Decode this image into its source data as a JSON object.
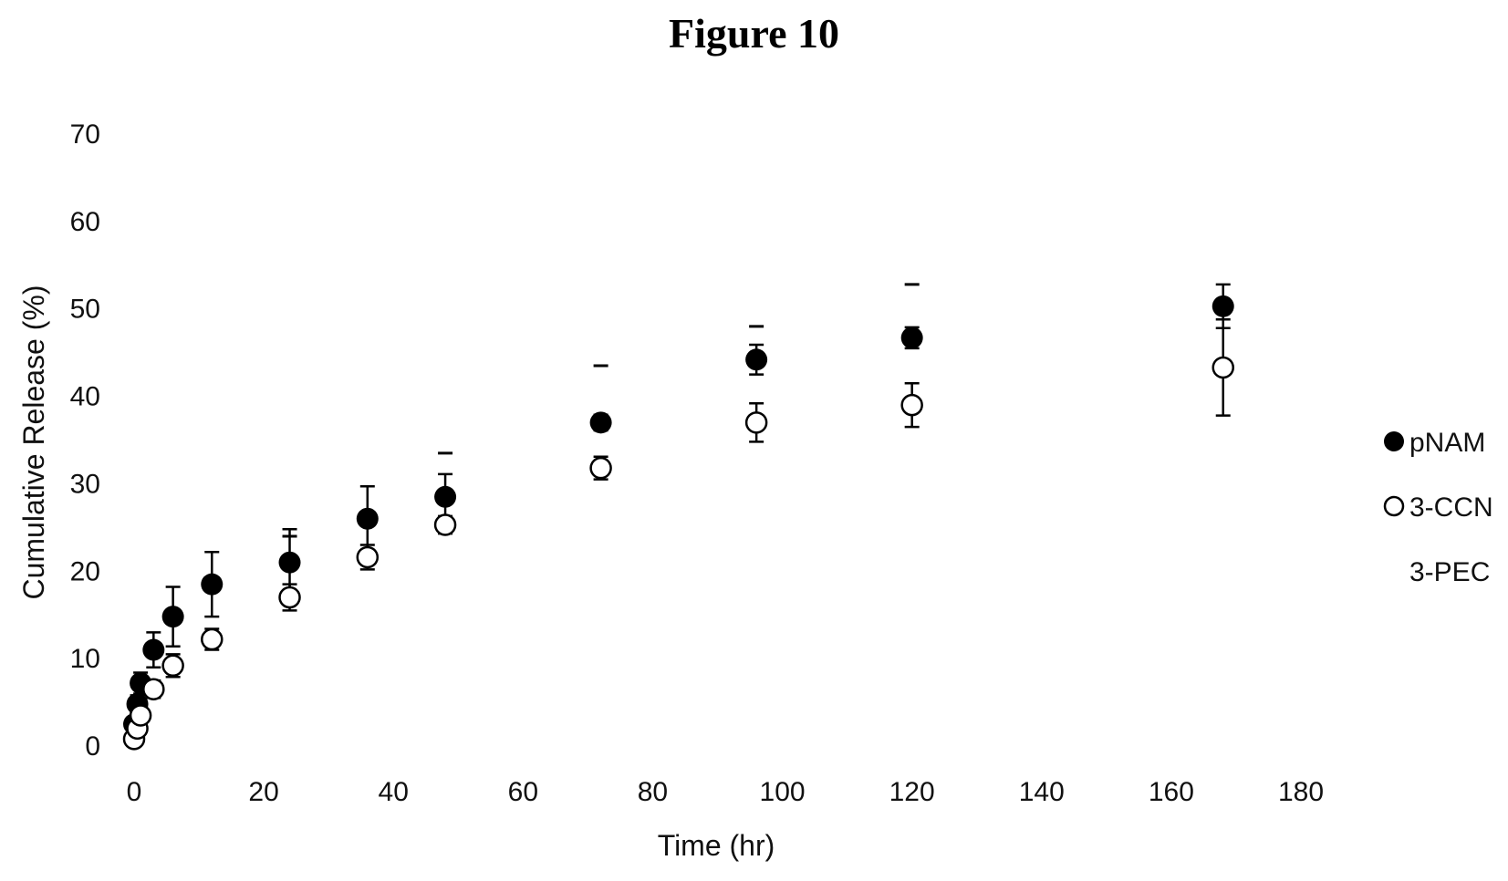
{
  "figure_title": "Figure 10",
  "chart_data": {
    "type": "scatter",
    "title": "",
    "xlabel": "Time (hr)",
    "ylabel": "Cumulative Release (%)",
    "xlim": [
      0,
      180
    ],
    "ylim": [
      0,
      70
    ],
    "xticks": [
      0,
      20,
      40,
      60,
      80,
      100,
      120,
      140,
      160,
      180
    ],
    "yticks": [
      0,
      10,
      20,
      30,
      40,
      50,
      60,
      70
    ],
    "grid": false,
    "legend_position": "right",
    "series": [
      {
        "name": "pNAM",
        "marker": "filled-circle",
        "color": "#000000",
        "points": [
          {
            "x": 0,
            "y": 2.5,
            "err": 0.8
          },
          {
            "x": 0.5,
            "y": 4.8,
            "err": 1.0
          },
          {
            "x": 1,
            "y": 7.2,
            "err": 1.2
          },
          {
            "x": 3,
            "y": 11.0,
            "err": 2.0
          },
          {
            "x": 6,
            "y": 14.8,
            "err": 3.4
          },
          {
            "x": 12,
            "y": 18.5,
            "err": 3.7
          },
          {
            "x": 24,
            "y": 21.0,
            "err": 3.8
          },
          {
            "x": 36,
            "y": 26.0,
            "err": 3.7
          },
          {
            "x": 48,
            "y": 28.5,
            "err": 2.6
          },
          {
            "x": 72,
            "y": 37.0,
            "err": 0.9
          },
          {
            "x": 96,
            "y": 44.2,
            "err": 1.7
          },
          {
            "x": 120,
            "y": 46.7,
            "err": 1.2
          },
          {
            "x": 168,
            "y": 50.3,
            "err": 2.5
          }
        ]
      },
      {
        "name": "3-CCN",
        "marker": "open-circle",
        "color": "#000000",
        "points": [
          {
            "x": 0,
            "y": 0.8,
            "err": 0.5
          },
          {
            "x": 0.5,
            "y": 2.0,
            "err": 0.7
          },
          {
            "x": 1,
            "y": 3.5,
            "err": 0.8
          },
          {
            "x": 3,
            "y": 6.5,
            "err": 1.0
          },
          {
            "x": 6,
            "y": 9.2,
            "err": 1.3
          },
          {
            "x": 12,
            "y": 12.2,
            "err": 1.2
          },
          {
            "x": 24,
            "y": 17.0,
            "err": 1.5
          },
          {
            "x": 36,
            "y": 21.6,
            "err": 1.4
          },
          {
            "x": 48,
            "y": 25.3,
            "err": 1.0
          },
          {
            "x": 72,
            "y": 31.8,
            "err": 1.3
          },
          {
            "x": 96,
            "y": 37.0,
            "err": 2.2
          },
          {
            "x": 120,
            "y": 39.0,
            "err": 2.5
          },
          {
            "x": 168,
            "y": 43.3,
            "err": 5.5
          }
        ]
      },
      {
        "name": "3-PEC",
        "marker": "dash",
        "color": "#000000",
        "points": [
          {
            "x": 24,
            "y": 24.0
          },
          {
            "x": 48,
            "y": 33.5
          },
          {
            "x": 72,
            "y": 43.5
          },
          {
            "x": 96,
            "y": 48.0
          },
          {
            "x": 120,
            "y": 52.8
          }
        ]
      }
    ]
  }
}
